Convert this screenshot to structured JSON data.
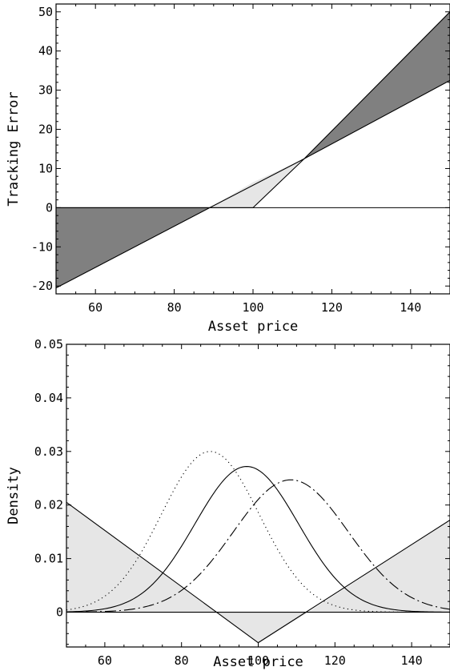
{
  "chart_data": [
    {
      "type": "area",
      "xlabel": "Asset price",
      "ylabel": "Tracking Error",
      "xlim": [
        50,
        150
      ],
      "ylim": [
        -22,
        52
      ],
      "xticks": [
        60,
        80,
        100,
        120,
        140
      ],
      "xtick_labels": [
        "60",
        "80",
        "100",
        "120",
        "140"
      ],
      "yticks": [
        -20,
        -10,
        0,
        10,
        20,
        30,
        40,
        50
      ],
      "ytick_labels": [
        "-20",
        "-10",
        "0",
        "10",
        "20",
        "30",
        "40",
        "50"
      ],
      "grid": false,
      "legend": null,
      "series": [
        {
          "style": "solid",
          "x": [
            50,
            150
          ],
          "y": [
            0,
            0
          ]
        },
        {
          "style": "solid",
          "x": [
            50,
            89,
            113,
            150
          ],
          "y": [
            -20.5,
            0,
            12.5,
            32.5
          ]
        },
        {
          "style": "solid",
          "x": [
            50,
            100,
            113,
            150
          ],
          "y": [
            0,
            0,
            12.5,
            50
          ]
        }
      ],
      "shaded_regions": [
        {
          "color": "#808080",
          "x": [
            50,
            89
          ],
          "upper": [
            0,
            0
          ],
          "lower": [
            -20.5,
            0
          ]
        },
        {
          "color": "#e6e6e6",
          "x": [
            89,
            100,
            113
          ],
          "upper": [
            0,
            6.5,
            12.5
          ],
          "lower": [
            0,
            0,
            12.5
          ]
        },
        {
          "color": "#808080",
          "x": [
            113,
            150
          ],
          "upper": [
            12.5,
            50
          ],
          "lower": [
            12.5,
            32.5
          ]
        }
      ]
    },
    {
      "type": "line",
      "xlabel": "Asset price",
      "ylabel": "Density",
      "xlim": [
        50,
        150
      ],
      "ylim": [
        -0.0065,
        0.05
      ],
      "xticks": [
        60,
        80,
        100,
        120,
        140
      ],
      "xtick_labels": [
        "60",
        "80",
        "100",
        "120",
        "140"
      ],
      "yticks": [
        0,
        0.01,
        0.02,
        0.03,
        0.04,
        0.05
      ],
      "ytick_labels": [
        "0",
        "0.01",
        "0.02",
        "0.03",
        "0.04",
        "0.05"
      ],
      "grid": false,
      "legend": null,
      "series": [
        {
          "style": "dotted",
          "kind": "normal",
          "mean": 87.5,
          "peak": 0.03,
          "sd": 12.8
        },
        {
          "style": "solid",
          "kind": "normal",
          "mean": 97,
          "peak": 0.0272,
          "sd": 13.5
        },
        {
          "style": "dashdot",
          "kind": "normal",
          "mean": 108.5,
          "peak": 0.0247,
          "sd": 15.0
        },
        {
          "style": "solid",
          "kind": "polyline",
          "x": [
            50,
            100,
            150
          ],
          "y": [
            0.0205,
            -0.0057,
            0.0172
          ]
        }
      ],
      "shaded_regions": [
        {
          "color": "#e6e6e6",
          "x": [
            50,
            89,
            100,
            113,
            150
          ],
          "upper": [
            0.0205,
            0,
            0,
            0,
            0.0172
          ],
          "lower": [
            0,
            0,
            -0.0057,
            0,
            0
          ]
        }
      ]
    }
  ]
}
